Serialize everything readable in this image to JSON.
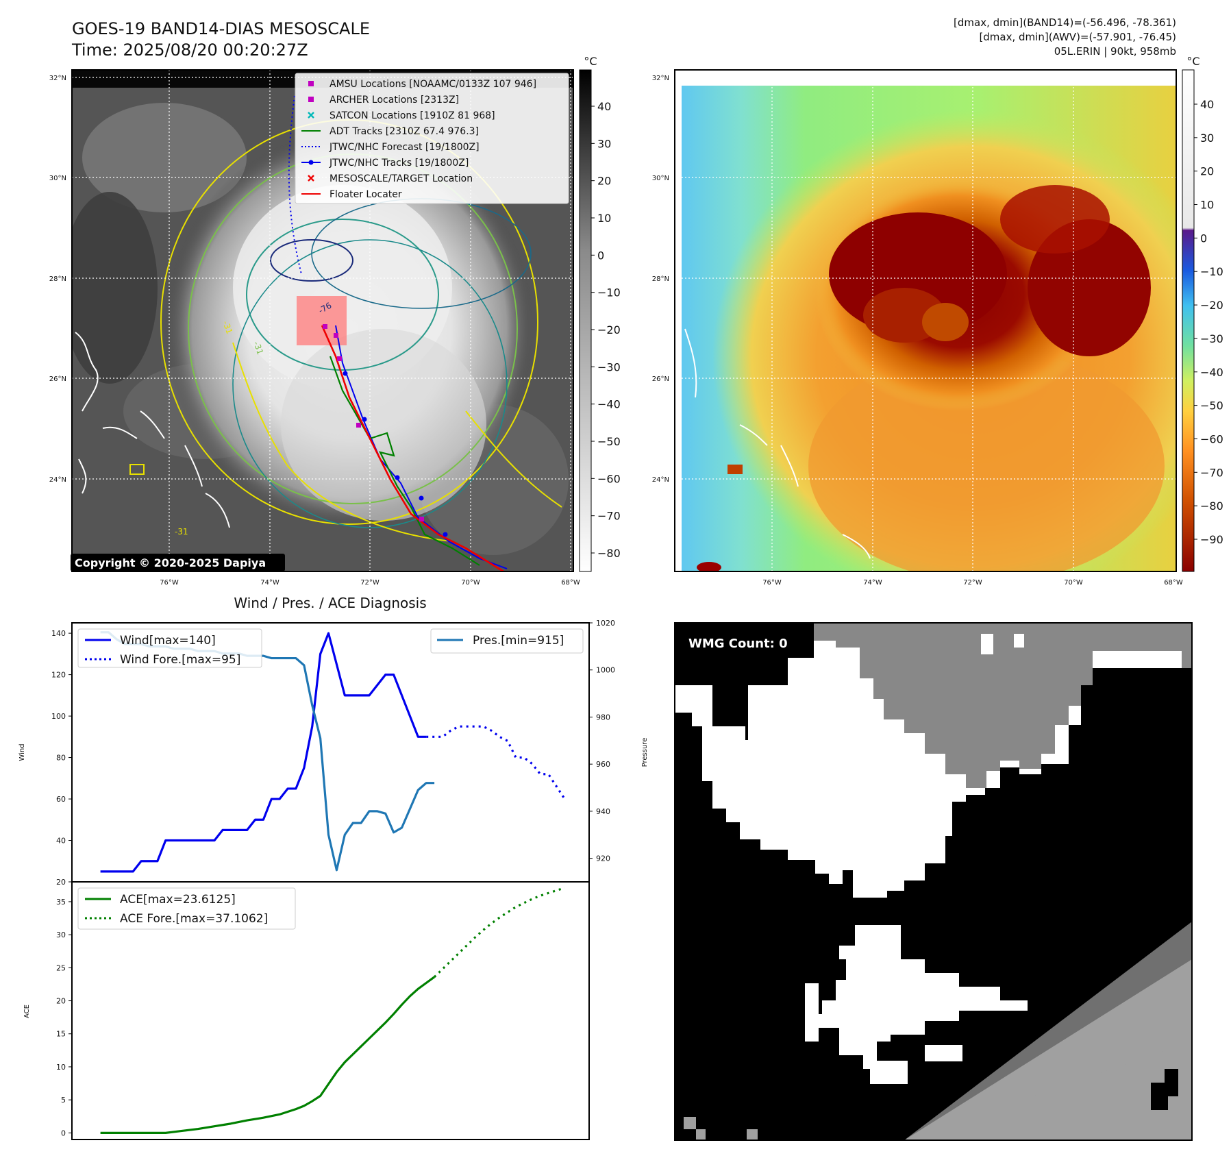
{
  "header": {
    "title_line1": "GOES-19 BAND14-DIAS MESOSCALE",
    "title_line2": "Time: 2025/08/20 00:20:27Z",
    "info_line1": "[dmax, dmin](BAND14)=(-56.496, -78.361)",
    "info_line2": "[dmax, dmin](AWV)=(-57.901, -76.45)",
    "info_line3": "05L.ERIN | 90kt, 958mb"
  },
  "map": {
    "lat_labels": [
      "32°N",
      "30°N",
      "28°N",
      "26°N",
      "24°N"
    ],
    "lon_labels": [
      "76°W",
      "74°W",
      "72°W",
      "70°W",
      "68°W"
    ],
    "copyright": "Copyright © 2020-2025 Dapiya",
    "legend": [
      {
        "label": "AMSU Locations [NOAAMC/0133Z 107 946]",
        "color": "#c000c0",
        "marker": "square"
      },
      {
        "label": "ARCHER Locations [2313Z]",
        "color": "#c000c0",
        "marker": "square"
      },
      {
        "label": "SATCON Locations [1910Z 81 968]",
        "color": "#00b8b8",
        "marker": "x"
      },
      {
        "label": "ADT Tracks [2310Z 67.4 976.3]",
        "color": "#008000",
        "marker": "line"
      },
      {
        "label": "JTWC/NHC Forecast [19/1800Z]",
        "color": "#0000ee",
        "marker": "dotted"
      },
      {
        "label": "JTWC/NHC Tracks [19/1800Z]",
        "color": "#0000ee",
        "marker": "line-dot"
      },
      {
        "label": "MESOSCALE/TARGET Location",
        "color": "#ee0000",
        "marker": "x"
      },
      {
        "label": "Floater Locater",
        "color": "#ee0000",
        "marker": "line"
      }
    ],
    "contour_labels": [
      "-31",
      "-31",
      "-76",
      "-31"
    ]
  },
  "colorbar_left": {
    "unit": "°C",
    "ticks": [
      "40",
      "30",
      "20",
      "10",
      "0",
      "−10",
      "−20",
      "−30",
      "−40",
      "−50",
      "−60",
      "−70",
      "−80"
    ]
  },
  "colorbar_right": {
    "unit": "°C",
    "ticks": [
      "40",
      "30",
      "20",
      "10",
      "0",
      "−10",
      "−20",
      "−30",
      "−40",
      "−50",
      "−60",
      "−70",
      "−80",
      "−90"
    ]
  },
  "wmg": {
    "label": "WMG Count: 0"
  },
  "colors": {
    "wind": "#0000ee",
    "pressure": "#1f77b4",
    "ace": "#008000"
  },
  "chart_data": [
    {
      "type": "line",
      "title": "Wind / Pres. / ACE Diagnosis",
      "ylabel": "Wind",
      "y2label": "Pressure",
      "ylim": [
        20,
        145
      ],
      "y2lim": [
        910,
        1020
      ],
      "yticks": [
        20,
        40,
        60,
        80,
        100,
        120,
        140
      ],
      "y2ticks": [
        920,
        940,
        960,
        980,
        1000,
        1020
      ],
      "series": [
        {
          "name": "Wind[max=140]",
          "axis": "left",
          "style": "solid",
          "x": [
            0,
            1,
            2,
            3,
            4,
            5,
            6,
            7,
            8,
            9,
            10,
            11,
            12,
            13,
            14,
            15,
            16,
            17,
            18,
            19,
            20,
            21,
            22,
            23,
            24,
            25,
            26,
            27,
            28,
            29,
            30,
            31,
            32,
            33,
            34,
            35,
            36,
            37
          ],
          "values": [
            25,
            25,
            25,
            25,
            25,
            30,
            30,
            30,
            40,
            40,
            40,
            40,
            40,
            40,
            40,
            45,
            45,
            45,
            45,
            50,
            50,
            60,
            60,
            65,
            65,
            75,
            95,
            130,
            140,
            125,
            110,
            110,
            110,
            110,
            115,
            120,
            120,
            110
          ]
        },
        {
          "name": "Wind[max=140] tail",
          "axis": "left",
          "style": "solid",
          "x": [
            37,
            38,
            39,
            40
          ],
          "values": [
            110,
            100,
            90,
            90
          ]
        },
        {
          "name": "Wind Fore.[max=95]",
          "axis": "left",
          "style": "dotted",
          "x": [
            40,
            41,
            42,
            43,
            44,
            45,
            46,
            47,
            48,
            49,
            50,
            51,
            52,
            53,
            54,
            55,
            56,
            57
          ],
          "values": [
            90,
            90,
            90,
            93,
            95,
            95,
            95,
            95,
            93,
            90,
            88,
            80,
            80,
            77,
            72,
            72,
            66,
            60
          ]
        },
        {
          "name": "Pres.[min=915]",
          "axis": "right",
          "style": "solid",
          "x": [
            0,
            1,
            2,
            3,
            4,
            5,
            6,
            7,
            8,
            9,
            10,
            11,
            12,
            13,
            14,
            15,
            16,
            17,
            18,
            19,
            20,
            21,
            22,
            23,
            24,
            25,
            26,
            27,
            28,
            29,
            30,
            31,
            32,
            33,
            34,
            35,
            36,
            37,
            38,
            39,
            40,
            41
          ],
          "values": [
            1016,
            1016,
            1013,
            1011,
            1011,
            1011,
            1010,
            1010,
            1010,
            1009,
            1009,
            1009,
            1008,
            1008,
            1008,
            1007,
            1007,
            1007,
            1006,
            1006,
            1006,
            1005,
            1005,
            1005,
            1005,
            1002,
            985,
            971,
            930,
            915,
            930,
            935,
            935,
            940,
            940,
            939,
            931,
            933,
            941,
            949,
            952,
            952
          ]
        }
      ]
    },
    {
      "type": "line",
      "ylabel": "ACE",
      "ylim": [
        -1,
        38
      ],
      "yticks": [
        0,
        5,
        10,
        15,
        20,
        25,
        30,
        35
      ],
      "series": [
        {
          "name": "ACE[max=23.6125]",
          "style": "solid",
          "x": [
            0,
            2,
            4,
            6,
            8,
            10,
            12,
            14,
            16,
            18,
            20,
            22,
            24,
            25,
            26,
            27,
            28,
            29,
            30,
            31,
            32,
            33,
            34,
            35,
            36,
            37,
            38,
            39,
            40,
            41
          ],
          "values": [
            0,
            0,
            0,
            0,
            0,
            0.3,
            0.6,
            1.0,
            1.4,
            1.9,
            2.3,
            2.8,
            3.6,
            4.1,
            4.8,
            5.6,
            7.4,
            9.2,
            10.7,
            11.9,
            13.1,
            14.3,
            15.5,
            16.7,
            18.0,
            19.4,
            20.7,
            21.8,
            22.7,
            23.6
          ]
        },
        {
          "name": "ACE Fore.[max=37.1062]",
          "style": "dotted",
          "x": [
            41,
            42,
            43,
            44,
            45,
            46,
            47,
            48,
            49,
            50,
            51,
            52,
            53,
            54,
            55,
            56,
            57
          ],
          "values": [
            23.6,
            24.8,
            26.0,
            27.2,
            28.4,
            29.6,
            30.7,
            31.7,
            32.6,
            33.4,
            34.2,
            34.8,
            35.4,
            35.9,
            36.3,
            36.7,
            37.1
          ]
        }
      ]
    }
  ]
}
